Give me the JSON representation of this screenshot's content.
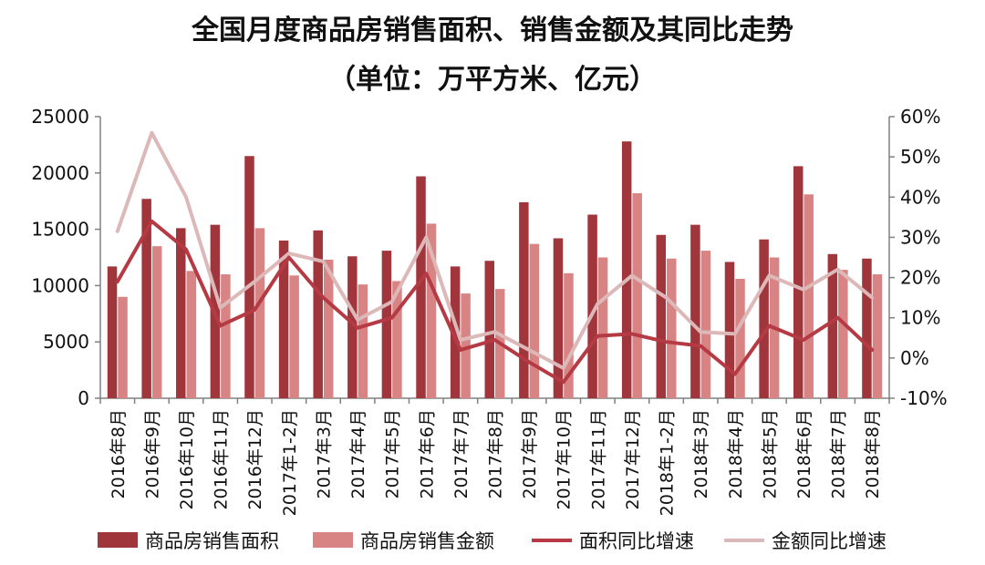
{
  "chart_data": {
    "type": "bar",
    "title": "全国月度商品房销售面积、销售金额及其同比走势",
    "subtitle": "（单位：万平方米、亿元）",
    "categories": [
      "2016年8月",
      "2016年9月",
      "2016年10月",
      "2016年11月",
      "2016年12月",
      "2017年1-2月",
      "2017年3月",
      "2017年4月",
      "2017年5月",
      "2017年6月",
      "2017年7月",
      "2017年8月",
      "2017年9月",
      "2017年10月",
      "2017年11月",
      "2017年12月",
      "2018年1-2月",
      "2018年3月",
      "2018年4月",
      "2018年5月",
      "2018年6月",
      "2018年7月",
      "2018年8月"
    ],
    "y_left": {
      "ylim": [
        0,
        25000
      ],
      "ticks": [
        "0",
        "5000",
        "10000",
        "15000",
        "20000",
        "25000"
      ]
    },
    "y_right": {
      "ylim": [
        -10,
        60
      ],
      "ticks": [
        "-10%",
        "0%",
        "10%",
        "20%",
        "30%",
        "40%",
        "50%",
        "60%"
      ]
    },
    "series": [
      {
        "name": "商品房销售面积",
        "type": "bar",
        "axis": "left",
        "color": "#a0353c",
        "values": [
          11700,
          17700,
          15100,
          15400,
          21500,
          14000,
          14900,
          12600,
          13100,
          19700,
          11700,
          12200,
          17400,
          14200,
          16300,
          22800,
          14500,
          15400,
          12100,
          14100,
          20600,
          12800,
          12400
        ]
      },
      {
        "name": "商品房销售金额",
        "type": "bar",
        "axis": "left",
        "color": "#d98484",
        "values": [
          9000,
          13500,
          11300,
          11000,
          15100,
          10900,
          12300,
          10100,
          10400,
          15500,
          9300,
          9700,
          13700,
          11100,
          12500,
          18200,
          12400,
          13100,
          10600,
          12500,
          18100,
          11400,
          11000
        ]
      },
      {
        "name": "面积同比增速",
        "type": "line",
        "axis": "right",
        "color": "#b53a43",
        "values": [
          19,
          34,
          27,
          8,
          12,
          25,
          15,
          7.5,
          10,
          21,
          2,
          4.5,
          -1,
          -6,
          5.5,
          6,
          4,
          3,
          -4,
          8,
          4.5,
          10,
          2
        ]
      },
      {
        "name": "金额同比增速",
        "type": "line",
        "axis": "right",
        "color": "#ddb8b8",
        "values": [
          31.5,
          56,
          40,
          12.5,
          19,
          26,
          24,
          9.5,
          14,
          30,
          4.5,
          6.5,
          2,
          -2.5,
          13.5,
          20.5,
          15,
          6.5,
          6,
          20.5,
          17,
          22,
          15
        ]
      }
    ]
  }
}
